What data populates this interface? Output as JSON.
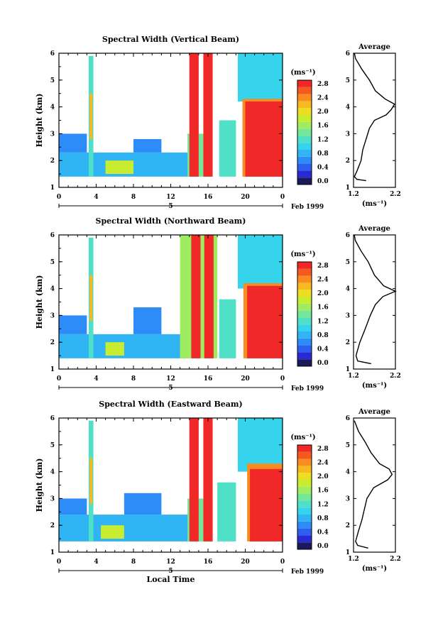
{
  "chart_data": [
    {
      "type": "heatmap",
      "title": "Spectral Width (Vertical Beam)",
      "xlabel": "",
      "ylabel": "Height (km)",
      "x_ticks": [
        "0",
        "4",
        "8",
        "12",
        "16",
        "20",
        "0"
      ],
      "xlim": [
        0,
        24
      ],
      "y_ticks": [
        "1",
        "2",
        "3",
        "4",
        "5",
        "6"
      ],
      "ylim": [
        1,
        6
      ],
      "date_day": "5",
      "date_label": "Feb 1999",
      "colorbar": {
        "unit": "(ms⁻¹)",
        "tick_labels": [
          "0.0",
          "0.4",
          "0.8",
          "1.2",
          "1.6",
          "2.0",
          "2.4",
          "2.8"
        ],
        "levels": [
          0.0,
          0.2,
          0.4,
          0.6,
          0.8,
          1.0,
          1.2,
          1.4,
          1.6,
          1.8,
          2.0,
          2.2,
          2.4,
          2.6,
          2.8,
          3.0
        ],
        "colors": [
          "#1a1a5a",
          "#2a2ad4",
          "#2c5ef0",
          "#2e8cf8",
          "#30b4f4",
          "#36d4ec",
          "#50e0c8",
          "#74e898",
          "#a0ec60",
          "#c8ec30",
          "#ecde20",
          "#f8b820",
          "#f88c20",
          "#f45a20",
          "#f02828"
        ]
      },
      "regions": [
        {
          "x": [
            0,
            14.2
          ],
          "y": [
            1.4,
            2.3
          ],
          "value": 0.8
        },
        {
          "x": [
            0,
            3.0
          ],
          "y": [
            2.3,
            3.0
          ],
          "value": 0.7
        },
        {
          "x": [
            3.2,
            3.7
          ],
          "y": [
            1.4,
            5.9
          ],
          "value": 1.3
        },
        {
          "x": [
            3.3,
            3.6
          ],
          "y": [
            2.8,
            4.5
          ],
          "value": 2.2
        },
        {
          "x": [
            5.0,
            8.0
          ],
          "y": [
            1.5,
            2.0
          ],
          "value": 1.8
        },
        {
          "x": [
            8.0,
            11.0
          ],
          "y": [
            2.3,
            2.8
          ],
          "value": 0.7
        },
        {
          "x": [
            13.8,
            16.0
          ],
          "y": [
            1.4,
            3.0
          ],
          "value": 1.4
        },
        {
          "x": [
            14.0,
            15.0
          ],
          "y": [
            1.4,
            6.0
          ],
          "value": 2.9
        },
        {
          "x": [
            15.5,
            16.5
          ],
          "y": [
            1.4,
            6.0
          ],
          "value": 2.9
        },
        {
          "x": [
            17.2,
            19.0
          ],
          "y": [
            1.4,
            3.5
          ],
          "value": 1.3
        },
        {
          "x": [
            19.2,
            24.0
          ],
          "y": [
            4.2,
            6.0
          ],
          "value": 1.1
        },
        {
          "x": [
            19.7,
            24.0
          ],
          "y": [
            1.4,
            4.3
          ],
          "value": 2.5
        },
        {
          "x": [
            20.0,
            24.0
          ],
          "y": [
            1.4,
            4.2
          ],
          "value": 2.9
        }
      ],
      "average_profile": {
        "title": "Average",
        "xlabel": "(ms⁻¹)",
        "x_ticks": [
          "1.2",
          "2.2"
        ],
        "xlim": [
          1.2,
          2.2
        ],
        "y_ticks": [
          "1",
          "2",
          "3",
          "4",
          "5",
          "6"
        ],
        "ylim": [
          1,
          6
        ],
        "points": [
          {
            "h": 1.25,
            "w": 1.5
          },
          {
            "h": 1.3,
            "w": 1.28
          },
          {
            "h": 1.4,
            "w": 1.22
          },
          {
            "h": 1.6,
            "w": 1.28
          },
          {
            "h": 2.0,
            "w": 1.38
          },
          {
            "h": 2.4,
            "w": 1.42
          },
          {
            "h": 2.8,
            "w": 1.5
          },
          {
            "h": 3.2,
            "w": 1.58
          },
          {
            "h": 3.5,
            "w": 1.7
          },
          {
            "h": 3.7,
            "w": 1.98
          },
          {
            "h": 3.9,
            "w": 2.1
          },
          {
            "h": 4.1,
            "w": 2.18
          },
          {
            "h": 4.3,
            "w": 1.95
          },
          {
            "h": 4.6,
            "w": 1.72
          },
          {
            "h": 5.0,
            "w": 1.58
          },
          {
            "h": 5.4,
            "w": 1.4
          },
          {
            "h": 5.8,
            "w": 1.25
          },
          {
            "h": 6.0,
            "w": 1.22
          }
        ]
      }
    },
    {
      "type": "heatmap",
      "title": "Spectral Width (Northward Beam)",
      "xlabel": "",
      "ylabel": "Height (km)",
      "x_ticks": [
        "0",
        "4",
        "8",
        "12",
        "16",
        "20",
        "0"
      ],
      "xlim": [
        0,
        24
      ],
      "y_ticks": [
        "1",
        "2",
        "3",
        "4",
        "5",
        "6"
      ],
      "ylim": [
        1,
        6
      ],
      "date_day": "5",
      "date_label": "Feb 1999",
      "colorbar": {
        "unit": "(ms⁻¹)",
        "tick_labels": [
          "0.0",
          "0.4",
          "0.8",
          "1.2",
          "1.6",
          "2.0",
          "2.4",
          "2.8"
        ],
        "levels": [
          0.0,
          0.2,
          0.4,
          0.6,
          0.8,
          1.0,
          1.2,
          1.4,
          1.6,
          1.8,
          2.0,
          2.2,
          2.4,
          2.6,
          2.8,
          3.0
        ],
        "colors": [
          "#1a1a5a",
          "#2a2ad4",
          "#2c5ef0",
          "#2e8cf8",
          "#30b4f4",
          "#36d4ec",
          "#50e0c8",
          "#74e898",
          "#a0ec60",
          "#c8ec30",
          "#ecde20",
          "#f8b820",
          "#f88c20",
          "#f45a20",
          "#f02828"
        ]
      },
      "regions": [
        {
          "x": [
            0,
            14.2
          ],
          "y": [
            1.4,
            2.3
          ],
          "value": 0.8
        },
        {
          "x": [
            0,
            3.0
          ],
          "y": [
            2.3,
            3.0
          ],
          "value": 0.7
        },
        {
          "x": [
            3.2,
            3.7
          ],
          "y": [
            1.4,
            5.9
          ],
          "value": 1.3
        },
        {
          "x": [
            3.3,
            3.6
          ],
          "y": [
            2.8,
            4.5
          ],
          "value": 2.2
        },
        {
          "x": [
            5.0,
            7.0
          ],
          "y": [
            1.5,
            2.0
          ],
          "value": 1.8
        },
        {
          "x": [
            8.0,
            11.0
          ],
          "y": [
            2.3,
            3.3
          ],
          "value": 0.7
        },
        {
          "x": [
            13.0,
            17.0
          ],
          "y": [
            1.4,
            6.0
          ],
          "value": 1.6
        },
        {
          "x": [
            14.2,
            15.2
          ],
          "y": [
            1.4,
            6.0
          ],
          "value": 2.9
        },
        {
          "x": [
            15.6,
            16.6
          ],
          "y": [
            1.4,
            6.0
          ],
          "value": 2.9
        },
        {
          "x": [
            17.2,
            19.0
          ],
          "y": [
            1.4,
            3.6
          ],
          "value": 1.3
        },
        {
          "x": [
            19.2,
            24.0
          ],
          "y": [
            4.0,
            6.0
          ],
          "value": 1.1
        },
        {
          "x": [
            19.8,
            24.0
          ],
          "y": [
            1.4,
            4.2
          ],
          "value": 2.5
        },
        {
          "x": [
            20.2,
            24.0
          ],
          "y": [
            1.4,
            4.1
          ],
          "value": 2.9
        }
      ],
      "average_profile": {
        "title": "Average",
        "xlabel": "(ms⁻¹)",
        "x_ticks": [
          "1.2",
          "2.2"
        ],
        "xlim": [
          1.2,
          2.2
        ],
        "y_ticks": [
          "1",
          "2",
          "3",
          "4",
          "5",
          "6"
        ],
        "ylim": [
          1,
          6
        ],
        "points": [
          {
            "h": 1.2,
            "w": 1.62
          },
          {
            "h": 1.3,
            "w": 1.3
          },
          {
            "h": 1.5,
            "w": 1.26
          },
          {
            "h": 2.0,
            "w": 1.35
          },
          {
            "h": 2.5,
            "w": 1.48
          },
          {
            "h": 3.0,
            "w": 1.6
          },
          {
            "h": 3.4,
            "w": 1.72
          },
          {
            "h": 3.7,
            "w": 1.9
          },
          {
            "h": 3.9,
            "w": 2.2
          },
          {
            "h": 4.1,
            "w": 1.92
          },
          {
            "h": 4.5,
            "w": 1.7
          },
          {
            "h": 5.0,
            "w": 1.55
          },
          {
            "h": 5.4,
            "w": 1.38
          },
          {
            "h": 5.8,
            "w": 1.24
          },
          {
            "h": 6.0,
            "w": 1.22
          }
        ]
      }
    },
    {
      "type": "heatmap",
      "title": "Spectral Width (Eastward Beam)",
      "xlabel": "Local Time",
      "ylabel": "Height (km)",
      "x_ticks": [
        "0",
        "4",
        "8",
        "12",
        "16",
        "20",
        "0"
      ],
      "xlim": [
        0,
        24
      ],
      "y_ticks": [
        "1",
        "2",
        "3",
        "4",
        "5",
        "6"
      ],
      "ylim": [
        1,
        6
      ],
      "date_day": "5",
      "date_label": "Feb 1999",
      "colorbar": {
        "unit": "(ms⁻¹)",
        "tick_labels": [
          "0.0",
          "0.4",
          "0.8",
          "1.2",
          "1.6",
          "2.0",
          "2.4",
          "2.8"
        ],
        "levels": [
          0.0,
          0.2,
          0.4,
          0.6,
          0.8,
          1.0,
          1.2,
          1.4,
          1.6,
          1.8,
          2.0,
          2.2,
          2.4,
          2.6,
          2.8,
          3.0
        ],
        "colors": [
          "#1a1a5a",
          "#2a2ad4",
          "#2c5ef0",
          "#2e8cf8",
          "#30b4f4",
          "#36d4ec",
          "#50e0c8",
          "#74e898",
          "#a0ec60",
          "#c8ec30",
          "#ecde20",
          "#f8b820",
          "#f88c20",
          "#f45a20",
          "#f02828"
        ]
      },
      "regions": [
        {
          "x": [
            0,
            14.2
          ],
          "y": [
            1.4,
            2.4
          ],
          "value": 0.8
        },
        {
          "x": [
            0,
            3.0
          ],
          "y": [
            2.4,
            3.0
          ],
          "value": 0.7
        },
        {
          "x": [
            3.2,
            3.7
          ],
          "y": [
            1.4,
            5.9
          ],
          "value": 1.3
        },
        {
          "x": [
            3.3,
            3.6
          ],
          "y": [
            2.8,
            4.5
          ],
          "value": 2.2
        },
        {
          "x": [
            4.5,
            7.0
          ],
          "y": [
            1.5,
            2.0
          ],
          "value": 1.8
        },
        {
          "x": [
            7.0,
            11.0
          ],
          "y": [
            2.4,
            3.2
          ],
          "value": 0.7
        },
        {
          "x": [
            13.8,
            16.5
          ],
          "y": [
            1.4,
            3.0
          ],
          "value": 1.4
        },
        {
          "x": [
            14.0,
            15.0
          ],
          "y": [
            1.4,
            6.0
          ],
          "value": 2.9
        },
        {
          "x": [
            15.5,
            16.5
          ],
          "y": [
            1.4,
            6.0
          ],
          "value": 2.9
        },
        {
          "x": [
            17.0,
            19.0
          ],
          "y": [
            1.4,
            3.6
          ],
          "value": 1.3
        },
        {
          "x": [
            19.2,
            24.0
          ],
          "y": [
            4.0,
            6.0
          ],
          "value": 1.1
        },
        {
          "x": [
            20.2,
            24.0
          ],
          "y": [
            1.4,
            4.3
          ],
          "value": 2.5
        },
        {
          "x": [
            20.5,
            24.0
          ],
          "y": [
            1.4,
            4.1
          ],
          "value": 2.9
        }
      ],
      "average_profile": {
        "title": "Average",
        "xlabel": "(ms⁻¹)",
        "x_ticks": [
          "1.2",
          "2.2"
        ],
        "xlim": [
          1.2,
          2.2
        ],
        "y_ticks": [
          "1",
          "2",
          "3",
          "4",
          "5",
          "6"
        ],
        "ylim": [
          1,
          6
        ],
        "points": [
          {
            "h": 1.15,
            "w": 1.55
          },
          {
            "h": 1.25,
            "w": 1.3
          },
          {
            "h": 1.4,
            "w": 1.25
          },
          {
            "h": 1.8,
            "w": 1.32
          },
          {
            "h": 2.2,
            "w": 1.4
          },
          {
            "h": 2.6,
            "w": 1.46
          },
          {
            "h": 3.0,
            "w": 1.52
          },
          {
            "h": 3.4,
            "w": 1.68
          },
          {
            "h": 3.7,
            "w": 2.02
          },
          {
            "h": 3.9,
            "w": 2.12
          },
          {
            "h": 4.1,
            "w": 2.05
          },
          {
            "h": 4.3,
            "w": 1.82
          },
          {
            "h": 4.7,
            "w": 1.62
          },
          {
            "h": 5.1,
            "w": 1.48
          },
          {
            "h": 5.5,
            "w": 1.32
          },
          {
            "h": 5.9,
            "w": 1.22
          }
        ]
      }
    }
  ]
}
